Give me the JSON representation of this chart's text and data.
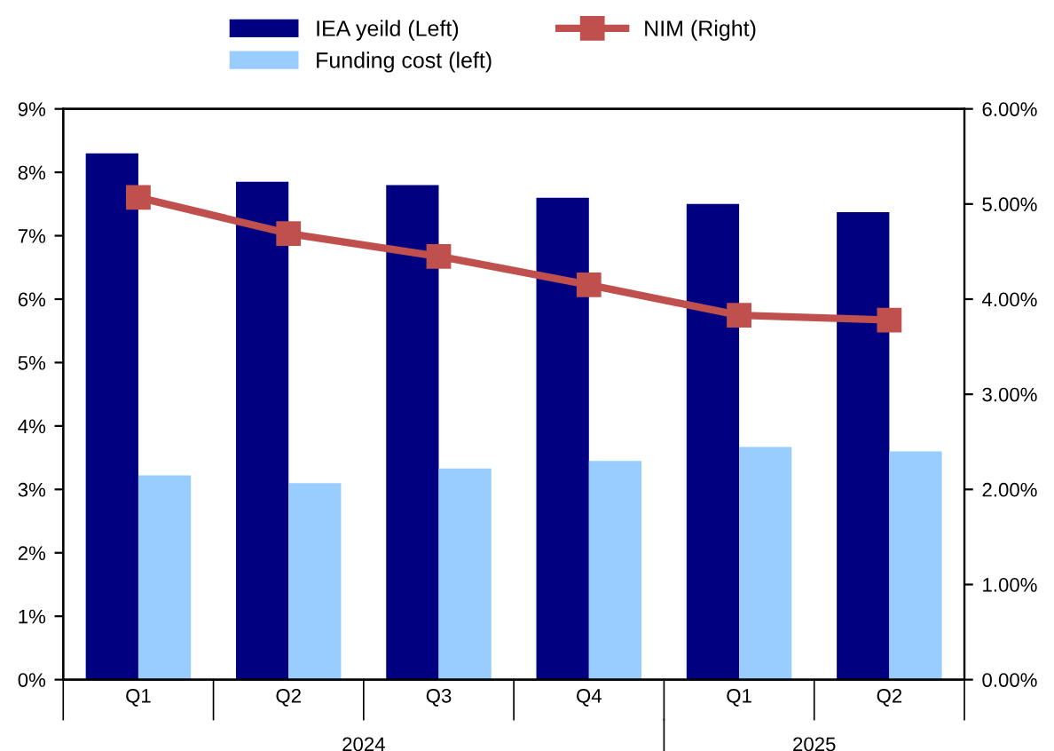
{
  "chart_data": {
    "type": "bar",
    "categories": [
      "Q1",
      "Q2",
      "Q3",
      "Q4",
      "Q1",
      "Q2"
    ],
    "series": [
      {
        "name": "IEA yeild (Left)",
        "color": "#000080",
        "values": [
          8.3,
          7.85,
          7.8,
          7.6,
          7.5,
          7.37
        ]
      },
      {
        "name": "Funding cost (left)",
        "color": "#99ccff",
        "values": [
          3.22,
          3.1,
          3.33,
          3.45,
          3.67,
          3.6
        ]
      },
      {
        "name": "NIM (Right)",
        "color": "#c0504d",
        "type": "line",
        "axis": "y2",
        "marker": "square",
        "values": [
          5.07,
          4.69,
          4.45,
          4.15,
          3.83,
          3.78
        ]
      }
    ],
    "ylim": [
      0,
      9
    ],
    "yticks": [
      {
        "value": 0,
        "label": "0%"
      },
      {
        "value": 1,
        "label": "1%"
      },
      {
        "value": 2,
        "label": "2%"
      },
      {
        "value": 3,
        "label": "3%"
      },
      {
        "value": 4,
        "label": "4%"
      },
      {
        "value": 5,
        "label": "5%"
      },
      {
        "value": 6,
        "label": "6%"
      },
      {
        "value": 7,
        "label": "7%"
      },
      {
        "value": 8,
        "label": "8%"
      },
      {
        "value": 9,
        "label": "9%"
      }
    ],
    "y2lim": [
      0,
      6
    ],
    "y2ticks": [
      {
        "value": 0,
        "label": "0.00%"
      },
      {
        "value": 1,
        "label": "1.00%"
      },
      {
        "value": 2,
        "label": "2.00%"
      },
      {
        "value": 3,
        "label": "3.00%"
      },
      {
        "value": 4,
        "label": "4.00%"
      },
      {
        "value": 5,
        "label": "5.00%"
      },
      {
        "value": 6,
        "label": "6.00%"
      }
    ],
    "annotations": [
      "2024",
      "2025"
    ],
    "legend": "top",
    "grid": false
  }
}
